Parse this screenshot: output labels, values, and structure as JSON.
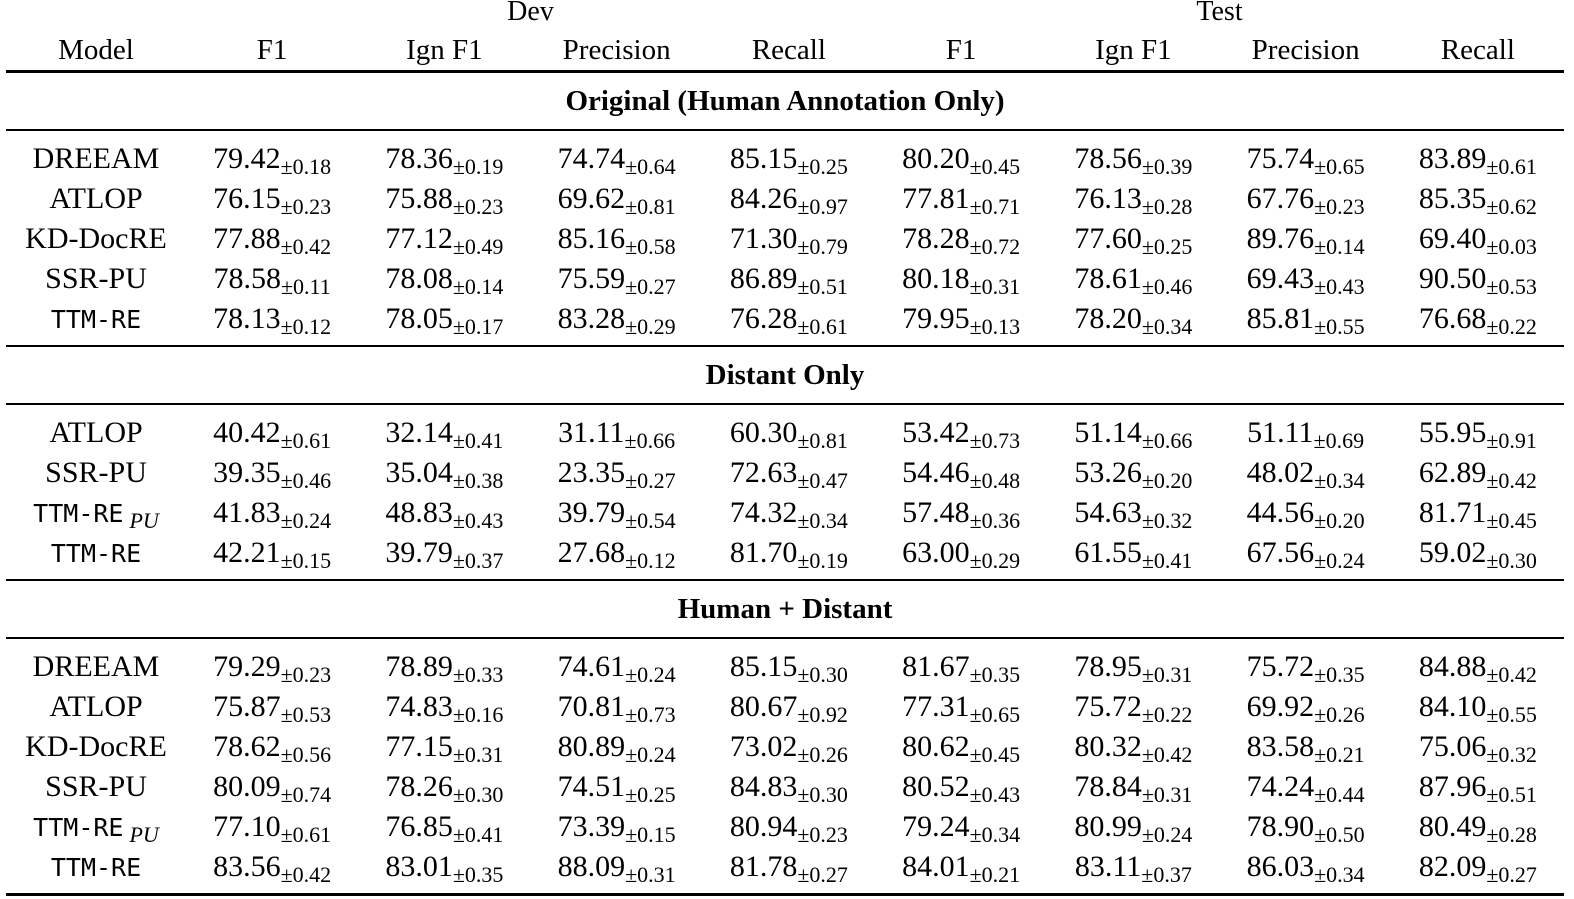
{
  "table": {
    "group_headers": {
      "dev": "Dev",
      "test": "Test"
    },
    "columns": [
      "Model",
      "F1",
      "Ign F1",
      "Precision",
      "Recall",
      "F1",
      "Ign F1",
      "Precision",
      "Recall"
    ],
    "sections": [
      {
        "title": "Original (Human Annotation Only)",
        "rows": [
          {
            "model": "DREEAM",
            "mono": false,
            "sub": "",
            "values": [
              [
                "79.42",
                "±0.18"
              ],
              [
                "78.36",
                "±0.19"
              ],
              [
                "74.74",
                "±0.64"
              ],
              [
                "85.15",
                "±0.25"
              ],
              [
                "80.20",
                "±0.45"
              ],
              [
                "78.56",
                "±0.39"
              ],
              [
                "75.74",
                "±0.65"
              ],
              [
                "83.89",
                "±0.61"
              ]
            ]
          },
          {
            "model": "ATLOP",
            "mono": false,
            "sub": "",
            "values": [
              [
                "76.15",
                "±0.23"
              ],
              [
                "75.88",
                "±0.23"
              ],
              [
                "69.62",
                "±0.81"
              ],
              [
                "84.26",
                "±0.97"
              ],
              [
                "77.81",
                "±0.71"
              ],
              [
                "76.13",
                "±0.28"
              ],
              [
                "67.76",
                "±0.23"
              ],
              [
                "85.35",
                "±0.62"
              ]
            ]
          },
          {
            "model": "KD-DocRE",
            "mono": false,
            "sub": "",
            "values": [
              [
                "77.88",
                "±0.42"
              ],
              [
                "77.12",
                "±0.49"
              ],
              [
                "85.16",
                "±0.58"
              ],
              [
                "71.30",
                "±0.79"
              ],
              [
                "78.28",
                "±0.72"
              ],
              [
                "77.60",
                "±0.25"
              ],
              [
                "89.76",
                "±0.14"
              ],
              [
                "69.40",
                "±0.03"
              ]
            ]
          },
          {
            "model": "SSR-PU",
            "mono": false,
            "sub": "",
            "values": [
              [
                "78.58",
                "±0.11"
              ],
              [
                "78.08",
                "±0.14"
              ],
              [
                "75.59",
                "±0.27"
              ],
              [
                "86.89",
                "±0.51"
              ],
              [
                "80.18",
                "±0.31"
              ],
              [
                "78.61",
                "±0.46"
              ],
              [
                "69.43",
                "±0.43"
              ],
              [
                "90.50",
                "±0.53"
              ]
            ]
          },
          {
            "model": "TTM-RE",
            "mono": true,
            "sub": "",
            "values": [
              [
                "78.13",
                "±0.12"
              ],
              [
                "78.05",
                "±0.17"
              ],
              [
                "83.28",
                "±0.29"
              ],
              [
                "76.28",
                "±0.61"
              ],
              [
                "79.95",
                "±0.13"
              ],
              [
                "78.20",
                "±0.34"
              ],
              [
                "85.81",
                "±0.55"
              ],
              [
                "76.68",
                "±0.22"
              ]
            ]
          }
        ]
      },
      {
        "title": "Distant Only",
        "rows": [
          {
            "model": "ATLOP",
            "mono": false,
            "sub": "",
            "values": [
              [
                "40.42",
                "±0.61"
              ],
              [
                "32.14",
                "±0.41"
              ],
              [
                "31.11",
                "±0.66"
              ],
              [
                "60.30",
                "±0.81"
              ],
              [
                "53.42",
                "±0.73"
              ],
              [
                "51.14",
                "±0.66"
              ],
              [
                "51.11",
                "±0.69"
              ],
              [
                "55.95",
                "±0.91"
              ]
            ]
          },
          {
            "model": "SSR-PU",
            "mono": false,
            "sub": "",
            "values": [
              [
                "39.35",
                "±0.46"
              ],
              [
                "35.04",
                "±0.38"
              ],
              [
                "23.35",
                "±0.27"
              ],
              [
                "72.63",
                "±0.47"
              ],
              [
                "54.46",
                "±0.48"
              ],
              [
                "53.26",
                "±0.20"
              ],
              [
                "48.02",
                "±0.34"
              ],
              [
                "62.89",
                "±0.42"
              ]
            ]
          },
          {
            "model": "TTM-RE",
            "mono": true,
            "sub": "PU",
            "values": [
              [
                "41.83",
                "±0.24"
              ],
              [
                "48.83",
                "±0.43"
              ],
              [
                "39.79",
                "±0.54"
              ],
              [
                "74.32",
                "±0.34"
              ],
              [
                "57.48",
                "±0.36"
              ],
              [
                "54.63",
                "±0.32"
              ],
              [
                "44.56",
                "±0.20"
              ],
              [
                "81.71",
                "±0.45"
              ]
            ]
          },
          {
            "model": "TTM-RE",
            "mono": true,
            "sub": "",
            "values": [
              [
                "42.21",
                "±0.15"
              ],
              [
                "39.79",
                "±0.37"
              ],
              [
                "27.68",
                "±0.12"
              ],
              [
                "81.70",
                "±0.19"
              ],
              [
                "63.00",
                "±0.29"
              ],
              [
                "61.55",
                "±0.41"
              ],
              [
                "67.56",
                "±0.24"
              ],
              [
                "59.02",
                "±0.30"
              ]
            ]
          }
        ]
      },
      {
        "title": "Human + Distant",
        "rows": [
          {
            "model": "DREEAM",
            "mono": false,
            "sub": "",
            "values": [
              [
                "79.29",
                "±0.23"
              ],
              [
                "78.89",
                "±0.33"
              ],
              [
                "74.61",
                "±0.24"
              ],
              [
                "85.15",
                "±0.30"
              ],
              [
                "81.67",
                "±0.35"
              ],
              [
                "78.95",
                "±0.31"
              ],
              [
                "75.72",
                "±0.35"
              ],
              [
                "84.88",
                "±0.42"
              ]
            ]
          },
          {
            "model": "ATLOP",
            "mono": false,
            "sub": "",
            "values": [
              [
                "75.87",
                "±0.53"
              ],
              [
                "74.83",
                "±0.16"
              ],
              [
                "70.81",
                "±0.73"
              ],
              [
                "80.67",
                "±0.92"
              ],
              [
                "77.31",
                "±0.65"
              ],
              [
                "75.72",
                "±0.22"
              ],
              [
                "69.92",
                "±0.26"
              ],
              [
                "84.10",
                "±0.55"
              ]
            ]
          },
          {
            "model": "KD-DocRE",
            "mono": false,
            "sub": "",
            "values": [
              [
                "78.62",
                "±0.56"
              ],
              [
                "77.15",
                "±0.31"
              ],
              [
                "80.89",
                "±0.24"
              ],
              [
                "73.02",
                "±0.26"
              ],
              [
                "80.62",
                "±0.45"
              ],
              [
                "80.32",
                "±0.42"
              ],
              [
                "83.58",
                "±0.21"
              ],
              [
                "75.06",
                "±0.32"
              ]
            ]
          },
          {
            "model": "SSR-PU",
            "mono": false,
            "sub": "",
            "values": [
              [
                "80.09",
                "±0.74"
              ],
              [
                "78.26",
                "±0.30"
              ],
              [
                "74.51",
                "±0.25"
              ],
              [
                "84.83",
                "±0.30"
              ],
              [
                "80.52",
                "±0.43"
              ],
              [
                "78.84",
                "±0.31"
              ],
              [
                "74.24",
                "±0.44"
              ],
              [
                "87.96",
                "±0.51"
              ]
            ]
          },
          {
            "model": "TTM-RE",
            "mono": true,
            "sub": "PU",
            "values": [
              [
                "77.10",
                "±0.61"
              ],
              [
                "76.85",
                "±0.41"
              ],
              [
                "73.39",
                "±0.15"
              ],
              [
                "80.94",
                "±0.23"
              ],
              [
                "79.24",
                "±0.34"
              ],
              [
                "80.99",
                "±0.24"
              ],
              [
                "78.90",
                "±0.50"
              ],
              [
                "80.49",
                "±0.28"
              ]
            ]
          },
          {
            "model": "TTM-RE",
            "mono": true,
            "sub": "",
            "values": [
              [
                "83.56",
                "±0.42"
              ],
              [
                "83.01",
                "±0.35"
              ],
              [
                "88.09",
                "±0.31"
              ],
              [
                "81.78",
                "±0.27"
              ],
              [
                "84.01",
                "±0.21"
              ],
              [
                "83.11",
                "±0.37"
              ],
              [
                "86.03",
                "±0.34"
              ],
              [
                "82.09",
                "±0.27"
              ]
            ]
          }
        ]
      }
    ]
  }
}
